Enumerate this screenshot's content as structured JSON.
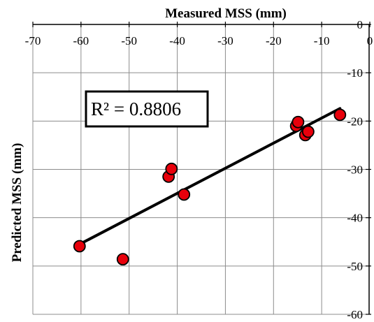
{
  "chart_data": {
    "type": "scatter",
    "xlabel": "Measured MSS (mm)",
    "ylabel": "Predicted  MSS (mm)",
    "xlim": [
      -70,
      0
    ],
    "ylim": [
      -60,
      0
    ],
    "x_ticks": [
      -70,
      -60,
      -50,
      -40,
      -30,
      -20,
      -10,
      0
    ],
    "y_ticks": [
      0,
      -10,
      -20,
      -30,
      -40,
      -50,
      -60
    ],
    "x_axis_position": "top",
    "y_axis_position": "right",
    "grid": true,
    "marker_color": "#e8000b",
    "trendline_color": "#000000",
    "annotation": "R² = 0.8806",
    "points": [
      {
        "x": -60.3,
        "y": -45.9
      },
      {
        "x": -51.3,
        "y": -48.6
      },
      {
        "x": -41.8,
        "y": -31.5
      },
      {
        "x": -41.2,
        "y": -29.9
      },
      {
        "x": -38.6,
        "y": -35.2
      },
      {
        "x": -15.3,
        "y": -21.0
      },
      {
        "x": -14.9,
        "y": -20.2
      },
      {
        "x": -13.4,
        "y": -22.9
      },
      {
        "x": -12.8,
        "y": -22.2
      },
      {
        "x": -6.2,
        "y": -18.7
      }
    ],
    "trendline": {
      "x": [
        -60.3,
        -6.2
      ],
      "y": [
        -45.5,
        -17.4
      ]
    }
  }
}
